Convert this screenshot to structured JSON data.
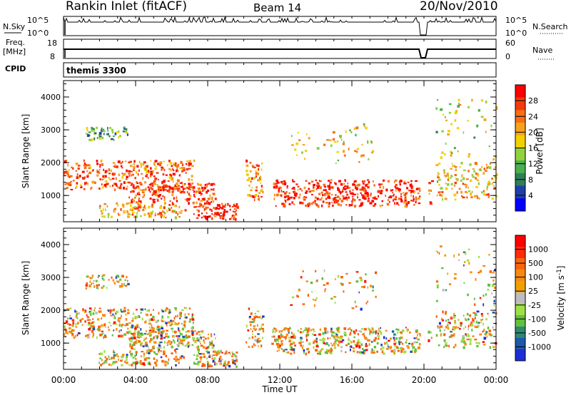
{
  "header": {
    "site": "Rankin Inlet (fitACF)",
    "beam": "Beam 14",
    "date": "20/Nov/2010"
  },
  "strip_panels": {
    "sky": {
      "left_label": "N.Sky",
      "right_label": "N.Search",
      "right_ticks": [
        "10^5",
        "10^0"
      ],
      "left_ticks": [
        "10^5",
        "10^0"
      ]
    },
    "freq": {
      "left_label_1": "Freq.",
      "left_label_2": "[MHz]",
      "left_ticks": [
        "18",
        "8"
      ],
      "right_label": "Nave",
      "right_ticks": [
        "60",
        "0"
      ]
    },
    "cpid": {
      "label": "CPID",
      "value": "themis 3300"
    }
  },
  "colors": {
    "power_scale": [
      "#0000ff",
      "#1f3fa8",
      "#2f7f58",
      "#4caf50",
      "#8fd13f",
      "#f3d000",
      "#f7a21c",
      "#f86f14",
      "#f43a0c",
      "#ff0000"
    ],
    "velocity_scale": [
      "#1b2fd6",
      "#1f57ac",
      "#2d8a72",
      "#63c13f",
      "#9de04a",
      "#bdbdbd",
      "#f2a000",
      "#f78a12",
      "#f8650c",
      "#ff2b0a",
      "#ff0000"
    ],
    "gap_vertical": "#000000"
  },
  "chart_data": [
    {
      "type": "heatmap",
      "title": "",
      "xlabel": "Time UT",
      "ylabel": "Slant Range [km]",
      "xlim": [
        "00:00",
        "00:00"
      ],
      "x_ticks": [
        "00:00",
        "04:00",
        "08:00",
        "12:00",
        "16:00",
        "20:00",
        "00:00"
      ],
      "ylim": [
        200,
        4500
      ],
      "y_ticks": [
        1000,
        2000,
        3000,
        4000
      ],
      "colorbar": {
        "label": "Power [dB]",
        "ticks": [
          4,
          8,
          12,
          16,
          20,
          24,
          28
        ]
      }
    },
    {
      "type": "heatmap",
      "title": "",
      "xlabel": "Time UT",
      "ylabel": "Slant Range [km]",
      "xlim": [
        "00:00",
        "00:00"
      ],
      "x_ticks": [
        "00:00",
        "04:00",
        "08:00",
        "12:00",
        "16:00",
        "20:00",
        "00:00"
      ],
      "ylim": [
        200,
        4500
      ],
      "y_ticks": [
        1000,
        2000,
        3000,
        4000
      ],
      "colorbar": {
        "label": "Velocity [m s",
        "label_sup": "-1",
        "label_end": "]",
        "ticks": [
          "1000",
          "500",
          "100",
          "25",
          "-25",
          "-100",
          "-500",
          "-1000"
        ]
      }
    }
  ]
}
